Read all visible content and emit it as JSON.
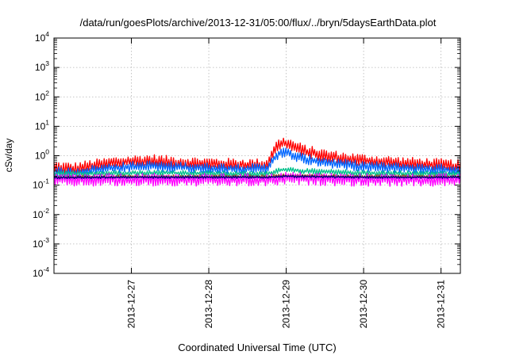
{
  "chart_data": {
    "type": "line",
    "title": "/data/run/goesPlots/archive/2013-12-31/05:00/flux/../bryn/5daysEarthData.plot",
    "xlabel": "Coordinated Universal Time (UTC)",
    "ylabel": "cSv/day",
    "yscale": "log",
    "ylim": [
      0.0001,
      10000
    ],
    "xlim": [
      "2013-12-26T00:00",
      "2013-12-31T06:00"
    ],
    "grid": true,
    "y_ticks": [
      {
        "base": "10",
        "exp": "4"
      },
      {
        "base": "10",
        "exp": "3"
      },
      {
        "base": "10",
        "exp": "2"
      },
      {
        "base": "10",
        "exp": "1"
      },
      {
        "base": "10",
        "exp": "0"
      },
      {
        "base": "10",
        "exp": "-1"
      },
      {
        "base": "10",
        "exp": "-2"
      },
      {
        "base": "10",
        "exp": "-3"
      },
      {
        "base": "10",
        "exp": "-4"
      }
    ],
    "x_ticks": [
      "2013-12-27",
      "2013-12-28",
      "2013-12-29",
      "2013-12-30",
      "2013-12-31"
    ],
    "series": [
      {
        "color": "#ff0000",
        "noise": 0.16,
        "values": [
          [
            "2013-12-26T00:00",
            0.4
          ],
          [
            "2013-12-26T06:00",
            0.35
          ],
          [
            "2013-12-26T12:00",
            0.45
          ],
          [
            "2013-12-26T18:00",
            0.55
          ],
          [
            "2013-12-27T00:00",
            0.62
          ],
          [
            "2013-12-27T06:00",
            0.68
          ],
          [
            "2013-12-27T12:00",
            0.6
          ],
          [
            "2013-12-27T18:00",
            0.55
          ],
          [
            "2013-12-28T00:00",
            0.52
          ],
          [
            "2013-12-28T06:00",
            0.5
          ],
          [
            "2013-12-28T12:00",
            0.48
          ],
          [
            "2013-12-28T18:00",
            0.48
          ],
          [
            "2013-12-28T20:00",
            1.5
          ],
          [
            "2013-12-28T22:00",
            2.5
          ],
          [
            "2013-12-29T00:00",
            2.6
          ],
          [
            "2013-12-29T03:00",
            1.9
          ],
          [
            "2013-12-29T06:00",
            1.4
          ],
          [
            "2013-12-29T12:00",
            1.0
          ],
          [
            "2013-12-29T18:00",
            0.8
          ],
          [
            "2013-12-30T00:00",
            0.68
          ],
          [
            "2013-12-30T12:00",
            0.55
          ],
          [
            "2013-12-31T00:00",
            0.48
          ],
          [
            "2013-12-31T06:00",
            0.42
          ]
        ]
      },
      {
        "color": "#0066ff",
        "noise": 0.13,
        "values": [
          [
            "2013-12-26T00:00",
            0.28
          ],
          [
            "2013-12-26T06:00",
            0.26
          ],
          [
            "2013-12-26T12:00",
            0.32
          ],
          [
            "2013-12-26T18:00",
            0.38
          ],
          [
            "2013-12-27T00:00",
            0.42
          ],
          [
            "2013-12-27T06:00",
            0.45
          ],
          [
            "2013-12-27T12:00",
            0.42
          ],
          [
            "2013-12-27T18:00",
            0.4
          ],
          [
            "2013-12-28T00:00",
            0.38
          ],
          [
            "2013-12-28T06:00",
            0.37
          ],
          [
            "2013-12-28T12:00",
            0.36
          ],
          [
            "2013-12-28T18:00",
            0.36
          ],
          [
            "2013-12-28T20:00",
            0.8
          ],
          [
            "2013-12-28T22:00",
            1.25
          ],
          [
            "2013-12-29T00:00",
            1.25
          ],
          [
            "2013-12-29T03:00",
            0.95
          ],
          [
            "2013-12-29T06:00",
            0.75
          ],
          [
            "2013-12-29T12:00",
            0.6
          ],
          [
            "2013-12-29T18:00",
            0.5
          ],
          [
            "2013-12-30T00:00",
            0.44
          ],
          [
            "2013-12-30T12:00",
            0.38
          ],
          [
            "2013-12-31T00:00",
            0.35
          ],
          [
            "2013-12-31T06:00",
            0.32
          ]
        ]
      },
      {
        "color": "#00c08a",
        "noise": 0.07,
        "values": [
          [
            "2013-12-26T00:00",
            0.24
          ],
          [
            "2013-12-26T12:00",
            0.25
          ],
          [
            "2013-12-27T00:00",
            0.26
          ],
          [
            "2013-12-27T12:00",
            0.26
          ],
          [
            "2013-12-28T00:00",
            0.25
          ],
          [
            "2013-12-28T12:00",
            0.24
          ],
          [
            "2013-12-28T18:00",
            0.24
          ],
          [
            "2013-12-28T22:00",
            0.33
          ],
          [
            "2013-12-29T00:00",
            0.34
          ],
          [
            "2013-12-29T06:00",
            0.3
          ],
          [
            "2013-12-29T12:00",
            0.28
          ],
          [
            "2013-12-30T00:00",
            0.26
          ],
          [
            "2013-12-30T12:00",
            0.25
          ],
          [
            "2013-12-31T06:00",
            0.24
          ]
        ]
      },
      {
        "color": "#a0522d",
        "noise": 0.04,
        "values": [
          [
            "2013-12-26T00:00",
            0.19
          ],
          [
            "2013-12-27T00:00",
            0.2
          ],
          [
            "2013-12-28T00:00",
            0.2
          ],
          [
            "2013-12-28T18:00",
            0.2
          ],
          [
            "2013-12-29T00:00",
            0.22
          ],
          [
            "2013-12-29T12:00",
            0.21
          ],
          [
            "2013-12-30T00:00",
            0.2
          ],
          [
            "2013-12-31T06:00",
            0.2
          ]
        ]
      },
      {
        "color": "#ff00ff",
        "noise": 0.16,
        "values": [
          [
            "2013-12-26T00:00",
            0.15
          ],
          [
            "2013-12-27T00:00",
            0.15
          ],
          [
            "2013-12-28T00:00",
            0.15
          ],
          [
            "2013-12-28T18:00",
            0.15
          ],
          [
            "2013-12-29T00:00",
            0.17
          ],
          [
            "2013-12-29T12:00",
            0.16
          ],
          [
            "2013-12-30T00:00",
            0.15
          ],
          [
            "2013-12-31T06:00",
            0.15
          ]
        ]
      },
      {
        "color": "#000080",
        "noise": 0.03,
        "values": [
          [
            "2013-12-26T00:00",
            0.18
          ],
          [
            "2013-12-27T00:00",
            0.185
          ],
          [
            "2013-12-28T00:00",
            0.185
          ],
          [
            "2013-12-28T18:00",
            0.185
          ],
          [
            "2013-12-29T00:00",
            0.2
          ],
          [
            "2013-12-29T12:00",
            0.19
          ],
          [
            "2013-12-30T00:00",
            0.185
          ],
          [
            "2013-12-31T06:00",
            0.185
          ]
        ]
      }
    ]
  }
}
